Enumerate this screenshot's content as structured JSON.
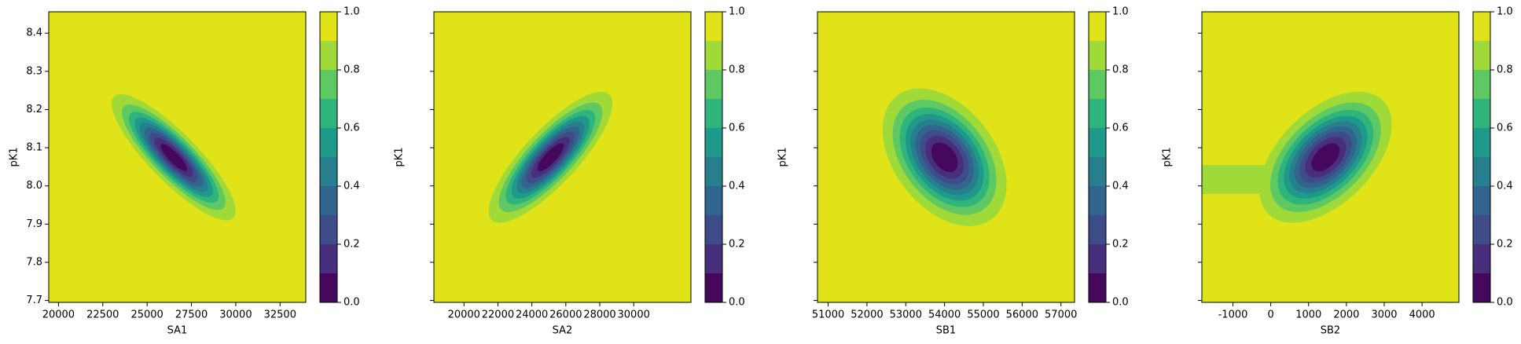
{
  "chart_data": [
    {
      "type": "contour",
      "xlabel": "SA1",
      "ylabel": "pK1",
      "xlim": [
        19450,
        33950
      ],
      "ylim": [
        7.695,
        8.456
      ],
      "xticks": [
        20000,
        22500,
        25000,
        27500,
        30000,
        32500
      ],
      "yticks": [
        7.7,
        7.8,
        7.9,
        {
          "value": 8,
          "label": "8.0"
        },
        8.1,
        8.2,
        8.3,
        8.4
      ],
      "center": [
        26500,
        8.075
      ],
      "sigma": [
        1630,
        0.077
      ],
      "rho": -0.85,
      "levels": [
        0,
        0.1,
        0.2,
        0.3,
        0.4,
        0.5,
        0.6,
        0.7,
        0.8,
        0.9,
        1
      ],
      "colors": [
        "#46085c",
        "#472f7d",
        "#3e4c8a",
        "#32658e",
        "#277f8e",
        "#1f998a",
        "#2fb47c",
        "#5ec962",
        "#a0da39",
        "#e0e318"
      ],
      "cbticks": [
        {
          "value": 0,
          "label": "0.0"
        },
        0.2,
        0.4,
        0.6,
        0.8,
        {
          "value": 1,
          "label": "1.0"
        }
      ]
    },
    {
      "type": "contour",
      "xlabel": "SA2",
      "ylabel": "pK1",
      "sharey": true,
      "xlim": [
        18229,
        33371
      ],
      "ylim": [
        7.695,
        8.456
      ],
      "xticks": [
        20000,
        22000,
        24000,
        26000,
        28000,
        30000
      ],
      "center": [
        25100,
        8.075
      ],
      "sigma": [
        1700,
        0.08
      ],
      "rho": 0.82,
      "levels": [
        0,
        0.1,
        0.2,
        0.3,
        0.4,
        0.5,
        0.6,
        0.7,
        0.8,
        0.9,
        1
      ],
      "colors": [
        "#46085c",
        "#472f7d",
        "#3e4c8a",
        "#32658e",
        "#277f8e",
        "#1f998a",
        "#2fb47c",
        "#5ec962",
        "#a0da39",
        "#e0e318"
      ],
      "cbticks": [
        {
          "value": 0,
          "label": "0.0"
        },
        0.2,
        0.4,
        0.6,
        0.8,
        {
          "value": 1,
          "label": "1.0"
        }
      ]
    },
    {
      "type": "contour",
      "xlabel": "SB1",
      "ylabel": "pK1",
      "sharey": true,
      "xlim": [
        50725,
        57350
      ],
      "ylim": [
        7.695,
        8.456
      ],
      "xticks": [
        51000,
        52000,
        53000,
        54000,
        55000,
        56000,
        57000
      ],
      "center": [
        54000,
        8.075
      ],
      "sigma": [
        745,
        0.084
      ],
      "rho": -0.4,
      "levels": [
        0,
        0.1,
        0.2,
        0.3,
        0.4,
        0.5,
        0.6,
        0.7,
        0.8,
        0.9,
        1
      ],
      "colors": [
        "#46085c",
        "#472f7d",
        "#3e4c8a",
        "#32658e",
        "#277f8e",
        "#1f998a",
        "#2fb47c",
        "#5ec962",
        "#a0da39",
        "#e0e318"
      ],
      "cbticks": [
        {
          "value": 0,
          "label": "0.0"
        },
        0.2,
        0.4,
        0.6,
        0.8,
        {
          "value": 1,
          "label": "1.0"
        }
      ]
    },
    {
      "type": "contour",
      "xlabel": "SB2",
      "ylabel": "pK1",
      "sharey": true,
      "xlim": [
        -1821,
        4974
      ],
      "ylim": [
        7.695,
        8.456
      ],
      "xticks": [
        -1000,
        0,
        1000,
        2000,
        3000,
        4000
      ],
      "center": [
        1450,
        8.075
      ],
      "sigma": [
        815,
        0.08
      ],
      "rho": 0.5,
      "band": {
        "x": [
          -1821,
          0
        ],
        "y": [
          7.979,
          8.055
        ],
        "level": 0.8
      },
      "levels": [
        0,
        0.1,
        0.2,
        0.3,
        0.4,
        0.5,
        0.6,
        0.7,
        0.8,
        0.9,
        1
      ],
      "colors": [
        "#46085c",
        "#472f7d",
        "#3e4c8a",
        "#32658e",
        "#277f8e",
        "#1f998a",
        "#2fb47c",
        "#5ec962",
        "#a0da39",
        "#e0e318"
      ],
      "cbticks": [
        {
          "value": 0,
          "label": "0.0"
        },
        0.2,
        0.4,
        0.6,
        0.8,
        {
          "value": 1,
          "label": "1.0"
        }
      ]
    }
  ]
}
